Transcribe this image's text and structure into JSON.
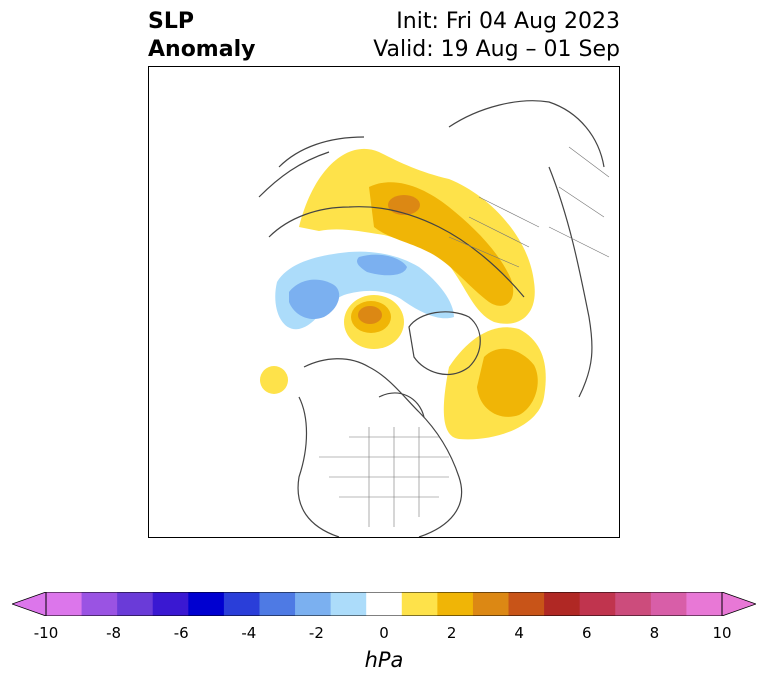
{
  "title": {
    "left_line1": "SLP",
    "left_line2": "Anomaly",
    "right_line1": "Init: Fri 04 Aug 2023",
    "right_line2": "Valid: 19 Aug – 01 Sep"
  },
  "map": {
    "projection": "north-polar-stereographic",
    "region": "Northern Hemisphere (Arctic, North America, Eurasia)",
    "features": [
      {
        "name": "positive-anomaly-eurasia-arctic",
        "sign": "positive",
        "approx_max_hPa": 4
      },
      {
        "name": "positive-anomaly-greenland-north-atlantic",
        "sign": "positive",
        "approx_max_hPa": 3
      },
      {
        "name": "positive-anomaly-central-arctic",
        "sign": "positive",
        "approx_max_hPa": 4
      },
      {
        "name": "negative-anomaly-siberian-arctic-alaska",
        "sign": "negative",
        "approx_min_hPa": -3
      },
      {
        "name": "positive-anomaly-north-pacific-small",
        "sign": "positive",
        "approx_max_hPa": 1
      }
    ]
  },
  "colorbar": {
    "units": "hPa",
    "ticks": [
      "-10",
      "-8",
      "-6",
      "-4",
      "-2",
      "0",
      "2",
      "4",
      "6",
      "8",
      "10"
    ],
    "colors": [
      "#dc76eb",
      "#9a53e3",
      "#6a3bd8",
      "#3a18d2",
      "#0000d0",
      "#2a3ed9",
      "#4e7ae4",
      "#7bb0f0",
      "#acdcfa",
      "#ffffff",
      "#fee24a",
      "#f0b506",
      "#dc8814",
      "#c85418",
      "#b02824",
      "#c0344e",
      "#cc4c7c",
      "#d85ea8",
      "#e878d6"
    ],
    "extend_low_color": "#dc76eb",
    "extend_high_color": "#e878d6"
  }
}
